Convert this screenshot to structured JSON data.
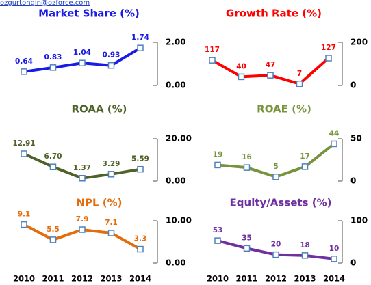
{
  "header": {
    "email": "ozgurtongin@ozforce.com"
  },
  "chart_data": [
    {
      "type": "line",
      "title": "Market Share (%)",
      "color": "#1a1ae6",
      "title_color": "#1a1ae6",
      "values": [
        0.64,
        0.83,
        1.04,
        0.93,
        1.74
      ],
      "ylim": [
        0,
        2
      ],
      "yticks": [
        {
          "value": 0,
          "label": "0.00"
        },
        {
          "value": 2,
          "label": "2.00"
        }
      ]
    },
    {
      "type": "line",
      "title": "Growth Rate (%)",
      "color": "#ff0000",
      "title_color": "#ff0000",
      "values": [
        117,
        40,
        47,
        7,
        127
      ],
      "ylim": [
        0,
        200
      ],
      "yticks": [
        0,
        200
      ]
    },
    {
      "type": "line",
      "title": "ROAA (%)",
      "color": "#4f6228",
      "title_color": "#4f6228",
      "values": [
        12.91,
        6.7,
        1.37,
        3.29,
        5.59
      ],
      "value_labels": [
        "12.91",
        "6.70",
        "1.37",
        "3.29",
        "5.59"
      ],
      "ylim": [
        0,
        20
      ],
      "yticks": [
        {
          "value": 0,
          "label": "0.00"
        },
        {
          "value": 20,
          "label": "20.00"
        }
      ]
    },
    {
      "type": "line",
      "title": "ROAE (%)",
      "color": "#77933c",
      "title_color": "#77933c",
      "values": [
        19,
        16,
        5,
        17,
        44
      ],
      "ylim": [
        0,
        50
      ],
      "yticks": [
        0,
        50
      ]
    },
    {
      "type": "line",
      "title": "NPL (%)",
      "color": "#e46c0a",
      "title_color": "#e46c0a",
      "values": [
        9.1,
        5.5,
        7.9,
        7.1,
        3.3
      ],
      "ylim": [
        0,
        10
      ],
      "yticks": [
        {
          "value": 0,
          "label": "0.00"
        },
        {
          "value": 10,
          "label": "10.00"
        }
      ],
      "categories": [
        "2010",
        "2011",
        "2012",
        "2013",
        "2014"
      ]
    },
    {
      "type": "line",
      "title": "Equity/Assets (%)",
      "color": "#7030a0",
      "title_color": "#7030a0",
      "values": [
        53,
        35,
        20,
        18,
        10
      ],
      "ylim": [
        0,
        100
      ],
      "yticks": [
        0,
        100
      ],
      "categories": [
        "2010",
        "2011",
        "2012",
        "2013",
        "2014"
      ]
    }
  ]
}
